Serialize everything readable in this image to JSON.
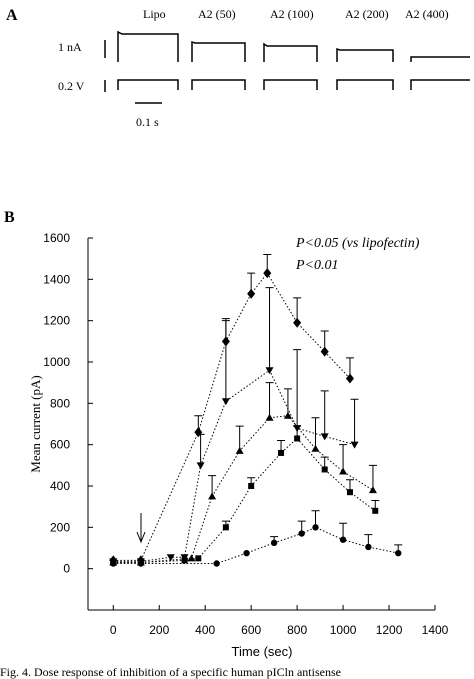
{
  "panel_a": {
    "label": "A",
    "conditions": [
      "Lipo",
      "A2 (50)",
      "A2 (100)",
      "A2 (200)",
      "A2 (400)"
    ],
    "current_scale": "1 nA",
    "voltage_scale": "0.2 V",
    "time_scale": "0.1 s"
  },
  "panel_b_label": "B",
  "chart_data": {
    "type": "line",
    "x_label": "Time (sec)",
    "y_label": "Mean current (pA)",
    "annotations": [
      "P<0.05 (vs lipofectin)",
      "P<0.01"
    ],
    "xlim": [
      -110,
      1400
    ],
    "ylim": [
      -200,
      1600
    ],
    "xticks": [
      0,
      200,
      400,
      600,
      800,
      1000,
      1200,
      1400
    ],
    "yticks": [
      0,
      200,
      400,
      600,
      800,
      1000,
      1200,
      1400,
      1600
    ],
    "series": [
      {
        "marker": "diamond",
        "color": "#000000",
        "x": [
          0,
          120,
          370,
          490,
          600,
          670,
          800,
          920,
          1030
        ],
        "values": [
          40,
          40,
          660,
          1100,
          1330,
          1430,
          1190,
          1050,
          920
        ],
        "errors": [
          null,
          null,
          80,
          100,
          100,
          90,
          120,
          100,
          100
        ]
      },
      {
        "marker": "triangle-down",
        "color": "#000000",
        "x": [
          0,
          120,
          250,
          310,
          380,
          490,
          680,
          800,
          920,
          1050
        ],
        "values": [
          35,
          35,
          55,
          55,
          500,
          810,
          960,
          680,
          640,
          600
        ],
        "errors": [
          null,
          null,
          null,
          null,
          150,
          400,
          400,
          380,
          220,
          220
        ]
      },
      {
        "marker": "triangle-up",
        "color": "#000000",
        "x": [
          0,
          120,
          340,
          430,
          550,
          680,
          760,
          880,
          1000,
          1130
        ],
        "values": [
          30,
          30,
          50,
          350,
          570,
          730,
          740,
          580,
          470,
          380
        ],
        "errors": [
          null,
          null,
          null,
          100,
          120,
          170,
          130,
          150,
          130,
          120
        ]
      },
      {
        "marker": "square",
        "color": "#000000",
        "x": [
          0,
          120,
          310,
          370,
          490,
          600,
          730,
          800,
          920,
          1030,
          1140
        ],
        "values": [
          30,
          30,
          40,
          50,
          200,
          400,
          560,
          630,
          480,
          370,
          280
        ],
        "errors": [
          null,
          null,
          null,
          null,
          30,
          40,
          60,
          60,
          60,
          60,
          50
        ]
      },
      {
        "marker": "circle",
        "color": "#000000",
        "x": [
          0,
          120,
          450,
          580,
          700,
          820,
          880,
          1000,
          1110,
          1240
        ],
        "values": [
          25,
          25,
          25,
          75,
          125,
          170,
          200,
          140,
          105,
          75
        ],
        "errors": [
          null,
          null,
          null,
          null,
          30,
          60,
          80,
          80,
          60,
          40
        ]
      }
    ]
  },
  "caption": "Fig. 4. Dose response of inhibition of a specific human pICln antisense"
}
